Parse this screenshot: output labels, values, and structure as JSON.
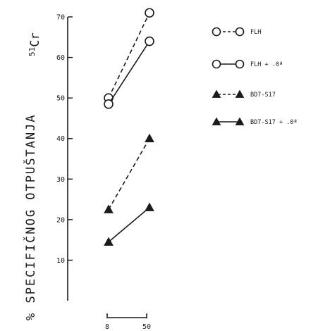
{
  "chart_data": {
    "type": "line",
    "title": "",
    "ylabel": "% SPECIFIČNOG OTPUŠTANJA",
    "isotope": {
      "mass": "51",
      "symbol": "Cr"
    },
    "xlabel": "",
    "x": [
      8,
      50
    ],
    "x_tick_labels": [
      "8",
      "50"
    ],
    "ylim": [
      0,
      70
    ],
    "y_ticks": [
      10,
      20,
      30,
      40,
      50,
      60,
      70
    ],
    "y_tick_labels": [
      "10",
      "20",
      "30",
      "40",
      "50",
      "60",
      "70"
    ],
    "grid": false,
    "legend_position": "top-right",
    "series": [
      {
        "name": "FLH",
        "marker": "circle",
        "line": "dashed",
        "values": [
          50,
          71
        ]
      },
      {
        "name": "FLH + .0ª",
        "marker": "circle",
        "line": "solid",
        "values": [
          48.5,
          64
        ]
      },
      {
        "name": "BD7-S17",
        "marker": "triangle",
        "line": "dashed",
        "values": [
          22.5,
          40
        ]
      },
      {
        "name": "BD7-S17 + .0ª",
        "marker": "triangle",
        "line": "solid",
        "values": [
          14.5,
          23
        ]
      }
    ]
  }
}
